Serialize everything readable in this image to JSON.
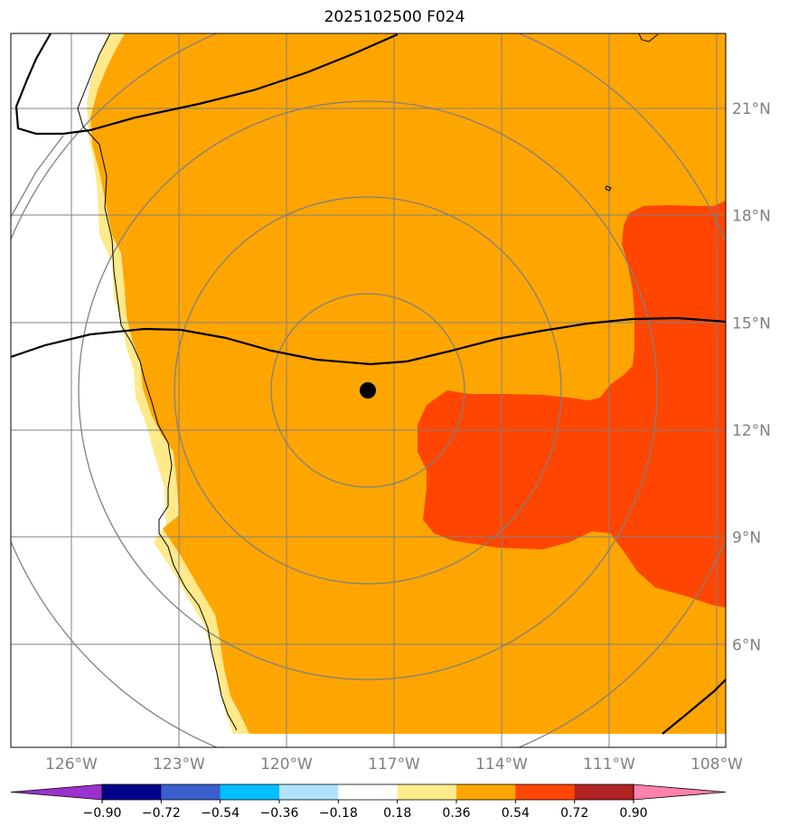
{
  "title": "2025102500 F024",
  "map": {
    "lon_range": [
      -128,
      -107.7
    ],
    "lat_range": [
      3.3,
      23.3
    ],
    "lon_ticks": [
      {
        "value": -126,
        "label": "126°W"
      },
      {
        "value": -123,
        "label": "123°W"
      },
      {
        "value": -120,
        "label": "120°W"
      },
      {
        "value": -117,
        "label": "117°W"
      },
      {
        "value": -114,
        "label": "114°W"
      },
      {
        "value": -111,
        "label": "111°W"
      },
      {
        "value": -108,
        "label": "108°W"
      }
    ],
    "lat_ticks": [
      {
        "value": 21,
        "label": "21°N"
      },
      {
        "value": 18,
        "label": "18°N"
      },
      {
        "value": 15,
        "label": "15°N"
      },
      {
        "value": 12,
        "label": "12°N"
      },
      {
        "value": 9,
        "label": "9°N"
      },
      {
        "value": 6,
        "label": "6°N"
      }
    ],
    "center": {
      "lon": -117.9,
      "lat": 13.1
    },
    "range_rings_deg": [
      2.75,
      5.5,
      8.25,
      11.0
    ],
    "colors": {
      "land": "#ffffff",
      "field_036_054": "#ffa500",
      "field_054_072": "#ff4500",
      "field_018_036": "#ffe98b",
      "grid": "#808080",
      "contour": "#000000"
    }
  },
  "colorbar": {
    "colors": [
      "#9a32cd",
      "#00008b",
      "#3a5fcd",
      "#00bfff",
      "#b0e2ff",
      "#ffffff",
      "#ffec8b",
      "#ffa500",
      "#ff4500",
      "#b22222",
      "#ff82ab"
    ],
    "ticks": [
      "−0.90",
      "−0.72",
      "−0.54",
      "−0.36",
      "−0.18",
      "0.18",
      "0.36",
      "0.54",
      "0.72",
      "0.90"
    ]
  }
}
